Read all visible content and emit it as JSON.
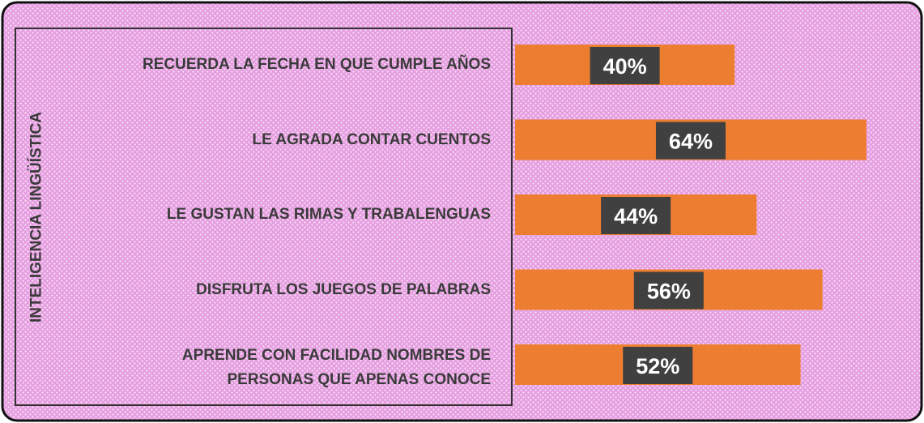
{
  "chart_data": {
    "type": "barh",
    "ylabel": "INTELIGENCIA LINGÜÍSTICA",
    "categories": [
      "RECUERDA LA FECHA EN QUE CUMPLE AÑOS",
      "LE AGRADA CONTAR CUENTOS",
      "LE GUSTAN LAS RIMAS Y TRABALENGUAS",
      "DISFRUTA LOS JUEGOS DE PALABRAS",
      "APRENDE CON FACILIDAD NOMBRES DE\nPERSONAS QUE APENAS CONOCE"
    ],
    "values": [
      40,
      64,
      44,
      56,
      52
    ],
    "value_labels": [
      "40%",
      "64%",
      "44%",
      "56%",
      "52%"
    ],
    "color": "#ed7d31"
  }
}
